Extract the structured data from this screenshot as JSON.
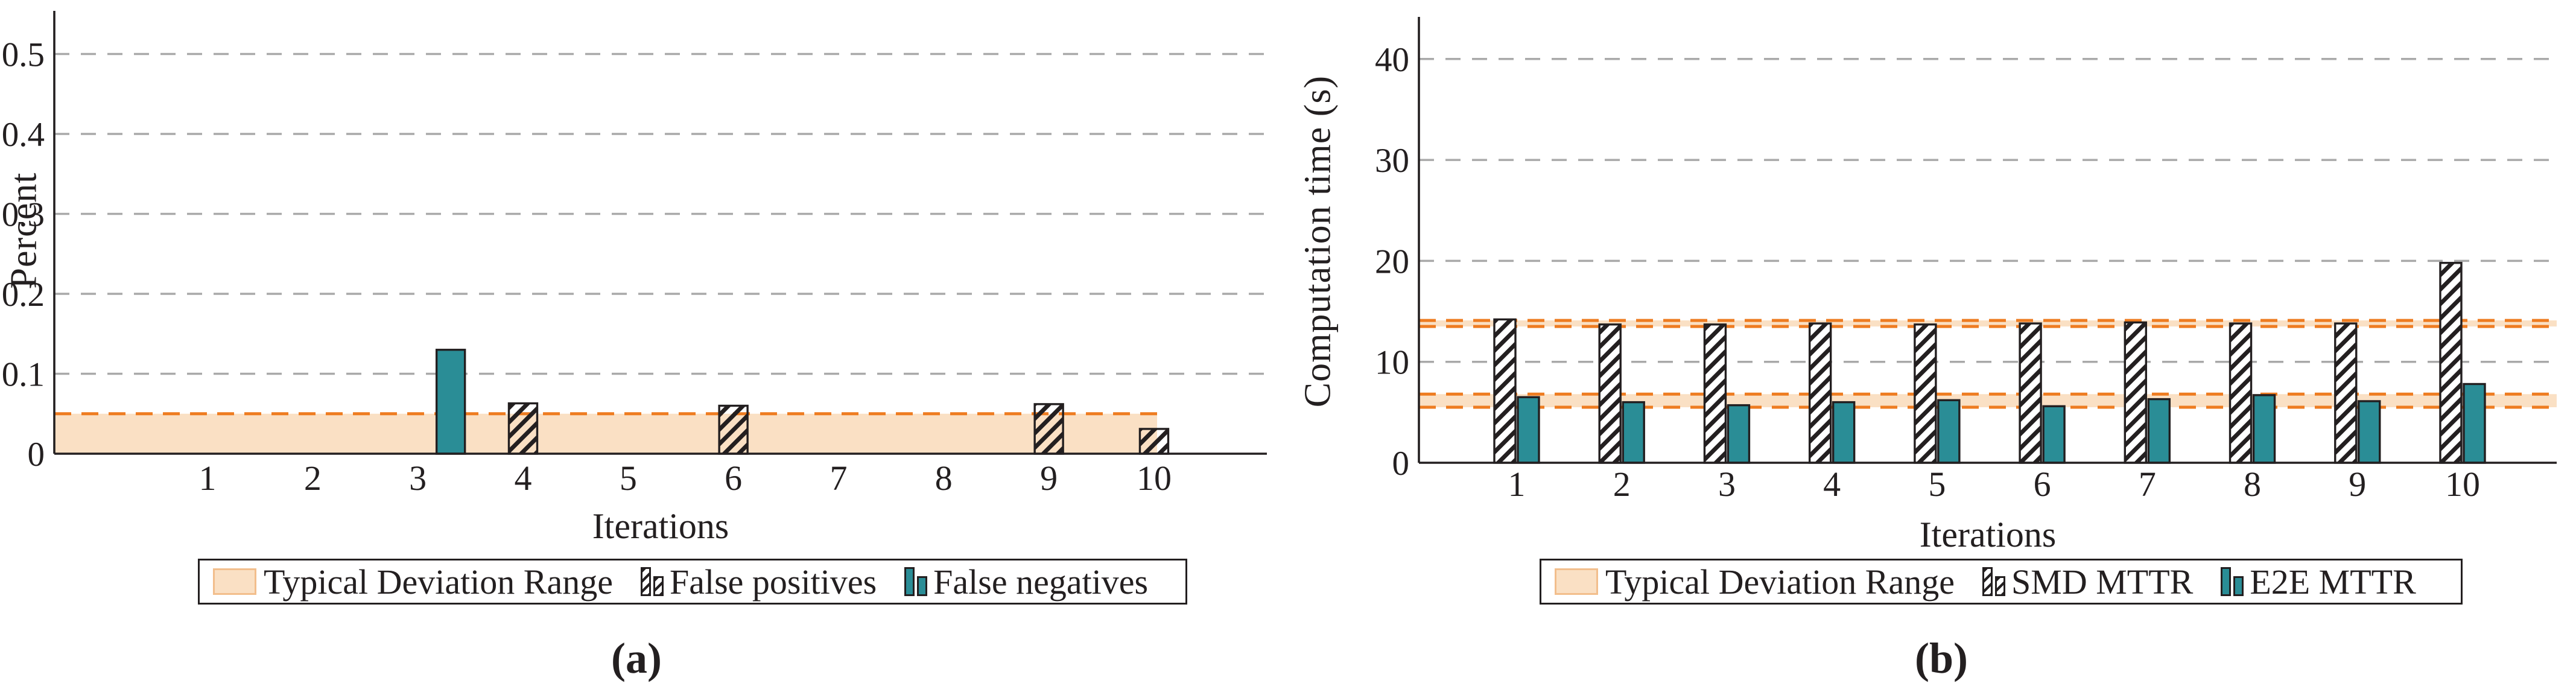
{
  "colors": {
    "teal": "#2A8D96",
    "band_fill": "#FAE0C4",
    "band_edge": "#EE7C21",
    "band_swatch_border": "#F2BE8C",
    "grid": "#A9A9A9",
    "ink": "#231F20",
    "hatch_bar_fill_panel_a": "transparent",
    "hatch_bar_fill_panel_b": "#ffffff"
  },
  "panels": [
    {
      "caption": "(a)",
      "legend": [
        {
          "label": "Typical Deviation Range",
          "marker": "band-swatch"
        },
        {
          "label": "False positives",
          "marker": "hatched-bars"
        },
        {
          "label": "False negatives",
          "marker": "teal-bars"
        }
      ],
      "chart_data": {
        "type": "bar",
        "title": "",
        "xlabel": "Iterations",
        "ylabel": "Percent",
        "categories": [
          1,
          2,
          3,
          4,
          5,
          6,
          7,
          8,
          9,
          10
        ],
        "series": [
          {
            "name": "False positives",
            "style": "hatched",
            "values": [
              0,
              0,
              0,
              0.063,
              0,
              0.06,
              0,
              0,
              0.062,
              0.031
            ]
          },
          {
            "name": "False negatives",
            "style": "solid-teal",
            "values": [
              0,
              0,
              0.13,
              0,
              0,
              0,
              0,
              0,
              0,
              0
            ]
          }
        ],
        "bands": [
          {
            "name": "Typical Deviation Range",
            "from": 0,
            "to": 0.05,
            "edges": [
              "top"
            ]
          }
        ],
        "yticks": [
          0,
          0.1,
          0.2,
          0.3,
          0.4,
          0.5
        ],
        "ytick_labels": [
          "0",
          "0.1",
          "0.2",
          "0.3",
          "0.4",
          "0.5"
        ],
        "ylim": [
          0,
          0.55
        ],
        "grid": "dashed-horizontal",
        "legend_position": "below"
      }
    },
    {
      "caption": "(b)",
      "legend": [
        {
          "label": "Typical Deviation Range",
          "marker": "band-swatch"
        },
        {
          "label": "SMD MTTR",
          "marker": "hatched-bars"
        },
        {
          "label": "E2E MTTR",
          "marker": "teal-bars"
        }
      ],
      "chart_data": {
        "type": "bar",
        "title": "",
        "xlabel": "Iterations",
        "ylabel": "Computation time (s)",
        "categories": [
          1,
          2,
          3,
          4,
          5,
          6,
          7,
          8,
          9,
          10
        ],
        "series": [
          {
            "name": "SMD MTTR",
            "style": "hatched",
            "values": [
              14.2,
              13.7,
              13.7,
              13.8,
              13.7,
              13.8,
              13.9,
              13.8,
              13.8,
              19.8
            ]
          },
          {
            "name": "E2E MTTR",
            "style": "solid-teal",
            "values": [
              6.5,
              6.0,
              5.7,
              6.0,
              6.2,
              5.6,
              6.3,
              6.7,
              6.1,
              7.8
            ]
          }
        ],
        "bands": [
          {
            "name": "Typical Deviation Range (SMD)",
            "from": 13.5,
            "to": 14.1,
            "edges": [
              "top",
              "bottom"
            ]
          },
          {
            "name": "Typical Deviation Range (E2E)",
            "from": 5.5,
            "to": 6.8,
            "edges": [
              "top",
              "bottom"
            ]
          }
        ],
        "yticks": [
          0,
          10,
          20,
          30,
          40
        ],
        "ytick_labels": [
          "0",
          "10",
          "20",
          "30",
          "40"
        ],
        "ylim": [
          0,
          44
        ],
        "grid": "dashed-horizontal",
        "legend_position": "below"
      }
    }
  ]
}
